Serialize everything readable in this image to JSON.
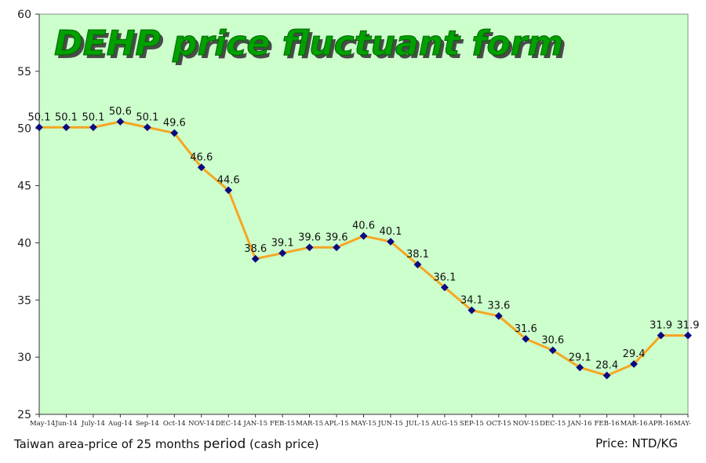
{
  "chart_data": {
    "type": "line",
    "title": "DEHP price fluctuant form",
    "categories": [
      "May-14",
      "Jun-14",
      "July-14",
      "Aug-14",
      "Sep-14",
      "Oct-14",
      "NOV-14",
      "DEC-14",
      "JAN-15",
      "FEB-15",
      "MAR-15",
      "APL-15",
      "MAY-15",
      "JUN-15",
      "JUL-15",
      "AUG-15",
      "SEP-15",
      "OCT-15",
      "NOV-15",
      "DEC-15",
      "JAN-16",
      "FEB-16",
      "MAR-16",
      "APR-16",
      "MAY-"
    ],
    "values": [
      50.1,
      50.1,
      50.1,
      50.6,
      50.1,
      49.6,
      46.6,
      44.6,
      38.6,
      39.1,
      39.6,
      39.6,
      40.6,
      40.1,
      38.1,
      36.1,
      34.1,
      33.6,
      31.6,
      30.6,
      29.1,
      28.4,
      29.4,
      31.9,
      31.9
    ],
    "data_labels": [
      "50.1",
      "50.1",
      "50.1",
      "50.6",
      "50.1",
      "49.6",
      "46.6",
      "44.6",
      "38.6",
      "39.1",
      "39.6",
      "39.6",
      "40.6",
      "40.1",
      "38.1",
      "36.1",
      "34.1",
      "33.6",
      "31.6",
      "30.6",
      "29.1",
      "28.4",
      "29.4",
      "31.9",
      "31.9"
    ],
    "ylim": [
      25,
      60
    ],
    "yticks": [
      "25",
      "30",
      "35",
      "40",
      "45",
      "50",
      "55",
      "60"
    ],
    "grid": false,
    "colors": {
      "plot_background": "#ccffcc",
      "line": "#f5a623",
      "marker": "#0a0a80",
      "title_fill": "#00a000",
      "title_shadow": "#4a4a4a"
    }
  },
  "footer": {
    "caption_part1": "Taiwan area-price of 25 months ",
    "caption_part2": "period",
    "caption_part3": " (cash price)",
    "unit": "Price: NTD/KG"
  }
}
